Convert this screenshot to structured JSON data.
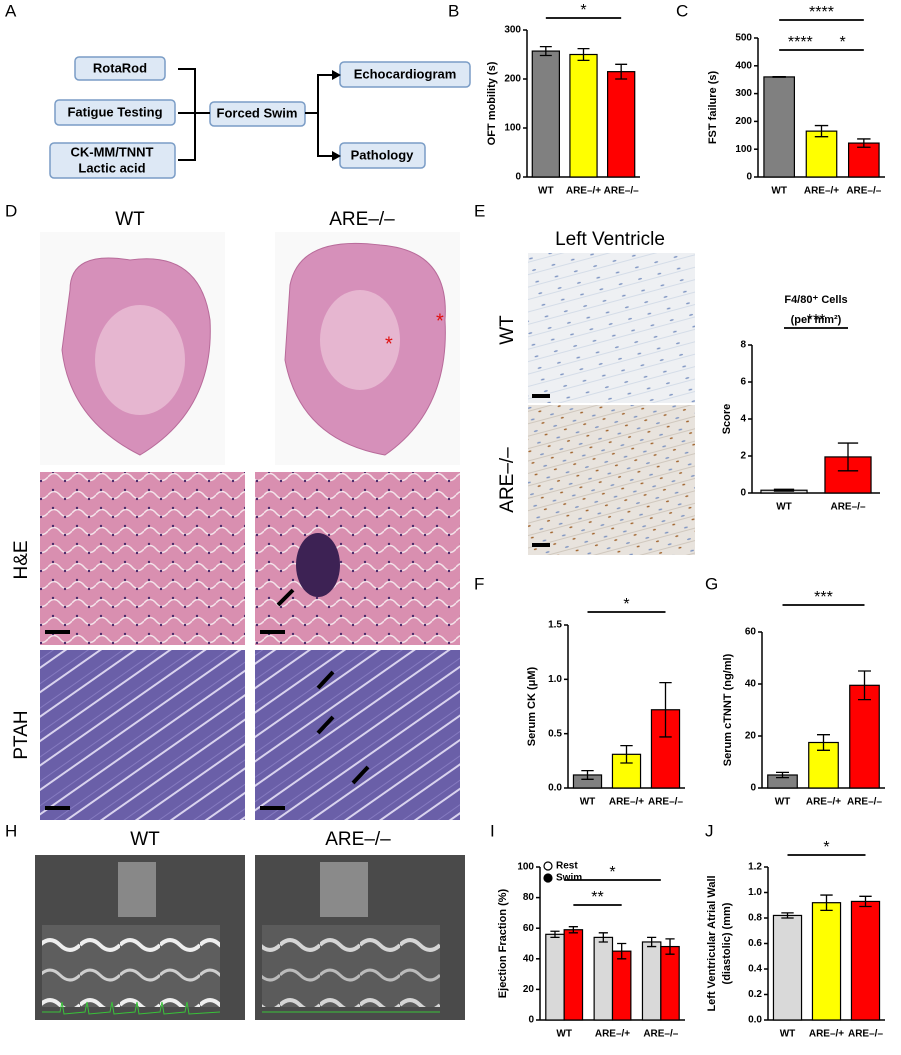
{
  "panel_labels": [
    "A",
    "B",
    "C",
    "D",
    "E",
    "F",
    "G",
    "H",
    "I",
    "J"
  ],
  "diagram": {
    "nodes": [
      {
        "label": "RotaRod"
      },
      {
        "label": "Fatigue Testing"
      },
      {
        "lines": [
          "CK-MM/TNNT",
          "Lactic acid"
        ]
      },
      {
        "label": "Forced Swim"
      },
      {
        "label": "Echocardiogram"
      },
      {
        "label": "Pathology"
      }
    ]
  },
  "histology": {
    "columns": [
      "WT",
      "ARE–/–"
    ],
    "rows": [
      "H&E",
      "PTAH"
    ]
  },
  "left_ventricle": {
    "title": "Left Ventricle",
    "rows": [
      "WT",
      "ARE–/–"
    ]
  },
  "echo": {
    "columns": [
      "WT",
      "ARE–/–"
    ]
  },
  "chart_data": [
    {
      "type": "bar",
      "ylabel": "OFT mobility (s)",
      "categories": [
        "WT",
        "ARE–/+",
        "ARE–/–"
      ],
      "values": [
        257,
        250,
        215
      ],
      "errors": [
        9,
        12,
        15
      ],
      "colors": [
        "#808080",
        "#ffff00",
        "#ff0000"
      ],
      "ylim": [
        0,
        300
      ],
      "yticks": [
        0,
        100,
        200,
        300
      ],
      "annotations": [
        "*"
      ]
    },
    {
      "type": "bar",
      "ylabel": "FST failure (s)",
      "categories": [
        "WT",
        "ARE–/+",
        "ARE–/–"
      ],
      "values": [
        360,
        165,
        122
      ],
      "errors": [
        1,
        20,
        15
      ],
      "colors": [
        "#808080",
        "#ffff00",
        "#ff0000"
      ],
      "ylim": [
        0,
        500
      ],
      "yticks": [
        0,
        100,
        200,
        300,
        400,
        500
      ],
      "annotations": [
        "****",
        "****",
        "*"
      ]
    },
    {
      "type": "bar",
      "title": "F4/80⁺ Cells",
      "subtitle": "(per mm²)",
      "ylabel": "Score",
      "categories": [
        "WT",
        "ARE–/–"
      ],
      "values": [
        0.15,
        1.95
      ],
      "errors": [
        0.05,
        0.75
      ],
      "colors": [
        "#d9d9d9",
        "#ff0000"
      ],
      "ylim": [
        0,
        8
      ],
      "yticks": [
        0,
        2,
        4,
        6,
        8
      ],
      "annotations": [
        "***"
      ]
    },
    {
      "type": "bar",
      "ylabel": "Serum CK (μM)",
      "categories": [
        "WT",
        "ARE–/+",
        "ARE–/–"
      ],
      "values": [
        0.12,
        0.31,
        0.72
      ],
      "errors": [
        0.04,
        0.08,
        0.25
      ],
      "colors": [
        "#808080",
        "#ffff00",
        "#ff0000"
      ],
      "ylim": [
        0,
        1.5
      ],
      "yticks": [
        {
          "value": 0,
          "label": "0.0"
        },
        0.5,
        {
          "value": 1,
          "label": "1.0"
        },
        1.5
      ],
      "annotations": [
        "*"
      ]
    },
    {
      "type": "bar",
      "ylabel": "Serum cTNNT (ng/ml)",
      "categories": [
        "WT",
        "ARE–/+",
        "ARE–/–"
      ],
      "values": [
        5,
        17.5,
        39.5
      ],
      "errors": [
        1,
        3,
        5.5
      ],
      "colors": [
        "#808080",
        "#ffff00",
        "#ff0000"
      ],
      "ylim": [
        0,
        60
      ],
      "yticks": [
        0,
        20,
        40,
        60
      ],
      "annotations": [
        "***"
      ]
    },
    {
      "type": "grouped_bar",
      "ylabel": "Ejection Fraction (%)",
      "categories": [
        "WT",
        "ARE–/+",
        "ARE–/–"
      ],
      "series": [
        {
          "name": "Rest",
          "color": "#d9d9d9",
          "values": [
            56,
            54,
            51
          ],
          "errors": [
            2,
            3,
            3
          ]
        },
        {
          "name": "Swim",
          "color": "#ff0000",
          "values": [
            59,
            45,
            48
          ],
          "errors": [
            2,
            5,
            5
          ]
        }
      ],
      "ylim": [
        0,
        100
      ],
      "yticks": [
        0,
        20,
        40,
        60,
        80,
        100
      ],
      "annotations": [
        "**",
        "*"
      ]
    },
    {
      "type": "bar",
      "ylabel": [
        "Left Ventricular Atrial Wall",
        "(diastolic) (mm)"
      ],
      "categories": [
        "WT",
        "ARE–/+",
        "ARE–/–"
      ],
      "values": [
        0.82,
        0.92,
        0.93
      ],
      "errors": [
        0.02,
        0.06,
        0.04
      ],
      "colors": [
        "#d9d9d9",
        "#ffff00",
        "#ff0000"
      ],
      "ylim": [
        0,
        1.2
      ],
      "yticks": [
        {
          "value": 0,
          "label": "0.0"
        },
        0.2,
        0.4,
        0.6,
        0.8,
        {
          "value": 1,
          "label": "1.0"
        },
        1.2
      ],
      "annotations": [
        "*"
      ]
    }
  ]
}
